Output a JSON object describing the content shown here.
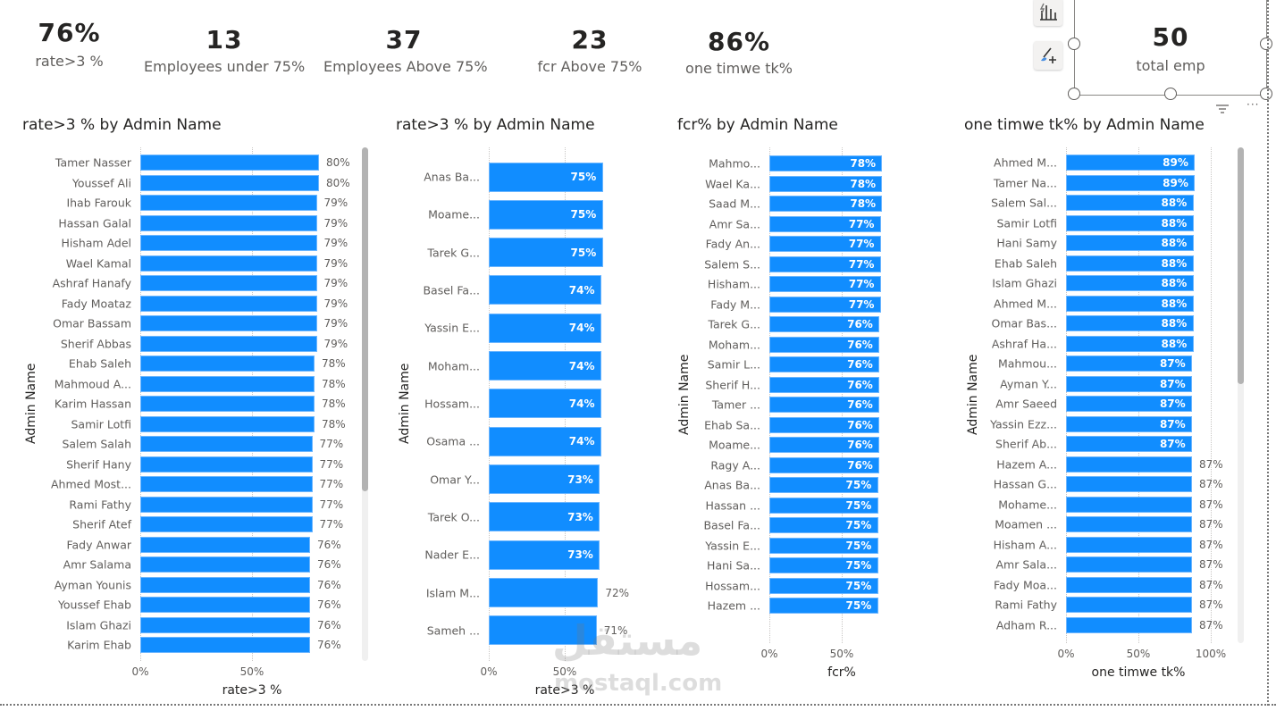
{
  "kpis": [
    {
      "value": "76%",
      "label": "rate>3 %"
    },
    {
      "value": "13",
      "label": "Employees under 75%"
    },
    {
      "value": "37",
      "label": "Employees Above 75%"
    },
    {
      "value": "23",
      "label": "fcr Above 75%"
    },
    {
      "value": "86%",
      "label": "one timwe tk%"
    },
    {
      "value": "50",
      "label": "total emp"
    }
  ],
  "watermark": {
    "arabic": "مستقل",
    "latin": "mostaql.com"
  },
  "chart_data": [
    {
      "type": "bar",
      "title": "rate>3 % by Admin Name",
      "xlabel": "rate>3 %",
      "ylabel": "Admin Name",
      "xlim": [
        0,
        100
      ],
      "ticks": [
        "0%",
        "50%"
      ],
      "categories": [
        "Tamer Nasser",
        "Youssef Ali",
        "Ihab Farouk",
        "Hassan Galal",
        "Hisham Adel",
        "Wael Kamal",
        "Ashraf Hanafy",
        "Fady Moataz",
        "Omar Bassam",
        "Sherif Abbas",
        "Ehab Saleh",
        "Mahmoud A...",
        "Karim Hassan",
        "Samir Lotfi",
        "Salem Salah",
        "Sherif Hany",
        "Ahmed Most...",
        "Rami Fathy",
        "Sherif Atef",
        "Fady Anwar",
        "Amr Salama",
        "Ayman Younis",
        "Youssef Ehab",
        "Islam Ghazi",
        "Karim Ehab"
      ],
      "values": [
        80,
        80,
        79,
        79,
        79,
        79,
        79,
        79,
        79,
        79,
        78,
        78,
        78,
        78,
        77,
        77,
        77,
        77,
        77,
        76,
        76,
        76,
        76,
        76,
        76
      ],
      "labels": [
        "80%",
        "80%",
        "79%",
        "79%",
        "79%",
        "79%",
        "79%",
        "79%",
        "79%",
        "79%",
        "78%",
        "78%",
        "78%",
        "78%",
        "77%",
        "77%",
        "77%",
        "77%",
        "77%",
        "76%",
        "76%",
        "76%",
        "76%",
        "76%",
        "76%"
      ]
    },
    {
      "type": "bar",
      "title": "rate>3 % by Admin Name",
      "xlabel": "rate>3 %",
      "ylabel": "Admin Name",
      "xlim": [
        0,
        100
      ],
      "ticks": [
        "0%",
        "50%"
      ],
      "categories": [
        "Anas Ba...",
        "Moame...",
        "Tarek G...",
        "Basel Fa...",
        "Yassin E...",
        "Moham...",
        "Hossam...",
        "Osama ...",
        "Omar Y...",
        "Tarek O...",
        "Nader E...",
        "Islam M...",
        "Sameh ..."
      ],
      "values": [
        75,
        75,
        75,
        74,
        74,
        74,
        74,
        74,
        73,
        73,
        73,
        72,
        71
      ],
      "labels": [
        "75%",
        "75%",
        "75%",
        "74%",
        "74%",
        "74%",
        "74%",
        "74%",
        "73%",
        "73%",
        "73%",
        "72%",
        "71%"
      ]
    },
    {
      "type": "bar",
      "title": "fcr% by Admin Name",
      "xlabel": "fcr%",
      "ylabel": "Admin Name",
      "xlim": [
        0,
        100
      ],
      "ticks": [
        "0%",
        "50%"
      ],
      "categories": [
        "Mahmo...",
        "Wael Ka...",
        "Saad M...",
        "Amr Sa...",
        "Fady An...",
        "Salem S...",
        "Hisham...",
        "Fady M...",
        "Tarek G...",
        "Moham...",
        "Samir L...",
        "Sherif H...",
        "Tamer ...",
        "Ehab Sa...",
        "Moame...",
        "Ragy A...",
        "Anas Ba...",
        "Hassan ...",
        "Basel Fa...",
        "Yassin E...",
        "Hani Sa...",
        "Hossam...",
        "Hazem ..."
      ],
      "values": [
        78,
        78,
        78,
        77,
        77,
        77,
        77,
        77,
        76,
        76,
        76,
        76,
        76,
        76,
        76,
        76,
        75,
        75,
        75,
        75,
        75,
        75,
        75
      ],
      "labels": [
        "78%",
        "78%",
        "78%",
        "77%",
        "77%",
        "77%",
        "77%",
        "77%",
        "76%",
        "76%",
        "76%",
        "76%",
        "76%",
        "76%",
        "76%",
        "76%",
        "75%",
        "75%",
        "75%",
        "75%",
        "75%",
        "75%",
        "75%"
      ]
    },
    {
      "type": "bar",
      "title": "one timwe tk% by Admin Name",
      "xlabel": "one timwe tk%",
      "ylabel": "Admin Name",
      "xlim": [
        0,
        100
      ],
      "ticks": [
        "0%",
        "50%",
        "100%"
      ],
      "categories": [
        "Ahmed M...",
        "Tamer Na...",
        "Salem Sal...",
        "Samir Lotfi",
        "Hani Samy",
        "Ehab Saleh",
        "Islam Ghazi",
        "Ahmed M...",
        "Omar Bas...",
        "Ashraf Ha...",
        "Mahmou...",
        "Ayman Y...",
        "Amr Saeed",
        "Yassin Ezz...",
        "Sherif Ab...",
        "Hazem A...",
        "Hassan G...",
        "Mohame...",
        "Moamen ...",
        "Hisham A...",
        "Amr Sala...",
        "Fady Moa...",
        "Rami Fathy",
        "Adham R..."
      ],
      "values": [
        89,
        89,
        88,
        88,
        88,
        88,
        88,
        88,
        88,
        88,
        87,
        87,
        87,
        87,
        87,
        87,
        87,
        87,
        87,
        87,
        87,
        87,
        87,
        87
      ],
      "labels": [
        "89%",
        "89%",
        "88%",
        "88%",
        "88%",
        "88%",
        "88%",
        "88%",
        "88%",
        "88%",
        "87%",
        "87%",
        "87%",
        "87%",
        "87%",
        "87%",
        "87%",
        "87%",
        "87%",
        "87%",
        "87%",
        "87%",
        "87%",
        "87%"
      ]
    }
  ]
}
